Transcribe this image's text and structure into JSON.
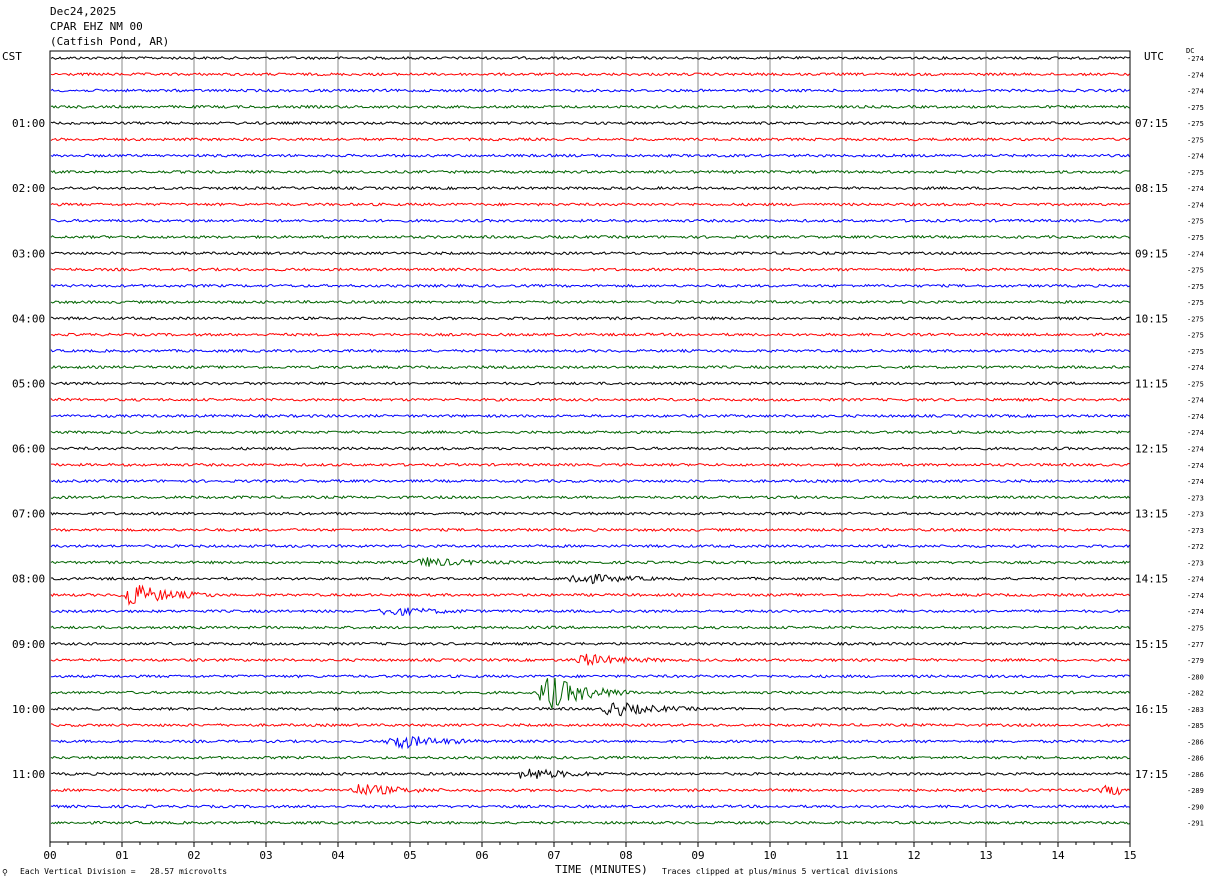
{
  "header": {
    "line1": "Dec24,2025",
    "line2": "CPAR EHZ NM 00",
    "line3": "(Catfish Pond, AR)"
  },
  "left_label": "CST",
  "right_label": "UTC",
  "dc_label": "DC",
  "footer": {
    "vertical_division": "Each Vertical Division =   28.57 microvolts",
    "xlabel": "TIME (MINUTES)",
    "clip_note": "Traces clipped at plus/minus 5 vertical divisions"
  },
  "colors": {
    "trace": [
      "#000000",
      "#ff0000",
      "#0000ff",
      "#006400"
    ],
    "grid": "#888888"
  },
  "chart_data": {
    "type": "line",
    "subtype": "helicorder",
    "xlabel": "TIME (MINUTES)",
    "xlim": [
      0,
      15
    ],
    "x_ticks": [
      "00",
      "01",
      "02",
      "03",
      "04",
      "05",
      "06",
      "07",
      "08",
      "09",
      "10",
      "11",
      "12",
      "13",
      "14",
      "15"
    ],
    "minutes_per_row": 15,
    "row_count": 48,
    "cst_hour_labels": [
      "01:00",
      "02:00",
      "03:00",
      "04:00",
      "05:00",
      "06:00",
      "07:00",
      "08:00",
      "09:00",
      "10:00",
      "11:00"
    ],
    "utc_hour_labels": [
      "07:15",
      "08:15",
      "09:15",
      "10:15",
      "11:15",
      "12:15",
      "13:15",
      "14:15",
      "15:15",
      "16:15",
      "17:15"
    ],
    "hour_label_rows": [
      4,
      8,
      12,
      16,
      20,
      24,
      28,
      32,
      36,
      40,
      44
    ],
    "dc_offsets": [
      -274,
      -274,
      -274,
      -275,
      -275,
      -275,
      -274,
      -275,
      -274,
      -274,
      -275,
      -275,
      -274,
      -275,
      -275,
      -275,
      -275,
      -275,
      -275,
      -274,
      -275,
      -274,
      -274,
      -274,
      -274,
      -274,
      -274,
      -273,
      -273,
      -273,
      -272,
      -273,
      -274,
      -274,
      -274,
      -275,
      -277,
      -279,
      -280,
      -282,
      -283,
      -285,
      -286,
      -286,
      -286,
      -289,
      -290,
      -291
    ],
    "events": [
      {
        "row": 33,
        "minute": 1.1,
        "amplitude": 4
      },
      {
        "row": 34,
        "minute": 4.7,
        "amplitude": 1.5
      },
      {
        "row": 31,
        "minute": 5.2,
        "amplitude": 1.5
      },
      {
        "row": 32,
        "minute": 7.3,
        "amplitude": 2
      },
      {
        "row": 37,
        "minute": 7.4,
        "amplitude": 2
      },
      {
        "row": 39,
        "minute": 6.9,
        "amplitude": 6
      },
      {
        "row": 40,
        "minute": 7.8,
        "amplitude": 2.5
      },
      {
        "row": 42,
        "minute": 4.8,
        "amplitude": 2.5
      },
      {
        "row": 44,
        "minute": 6.6,
        "amplitude": 2
      },
      {
        "row": 45,
        "minute": 4.3,
        "amplitude": 2
      },
      {
        "row": 45,
        "minute": 14.7,
        "amplitude": 1.5
      }
    ]
  }
}
